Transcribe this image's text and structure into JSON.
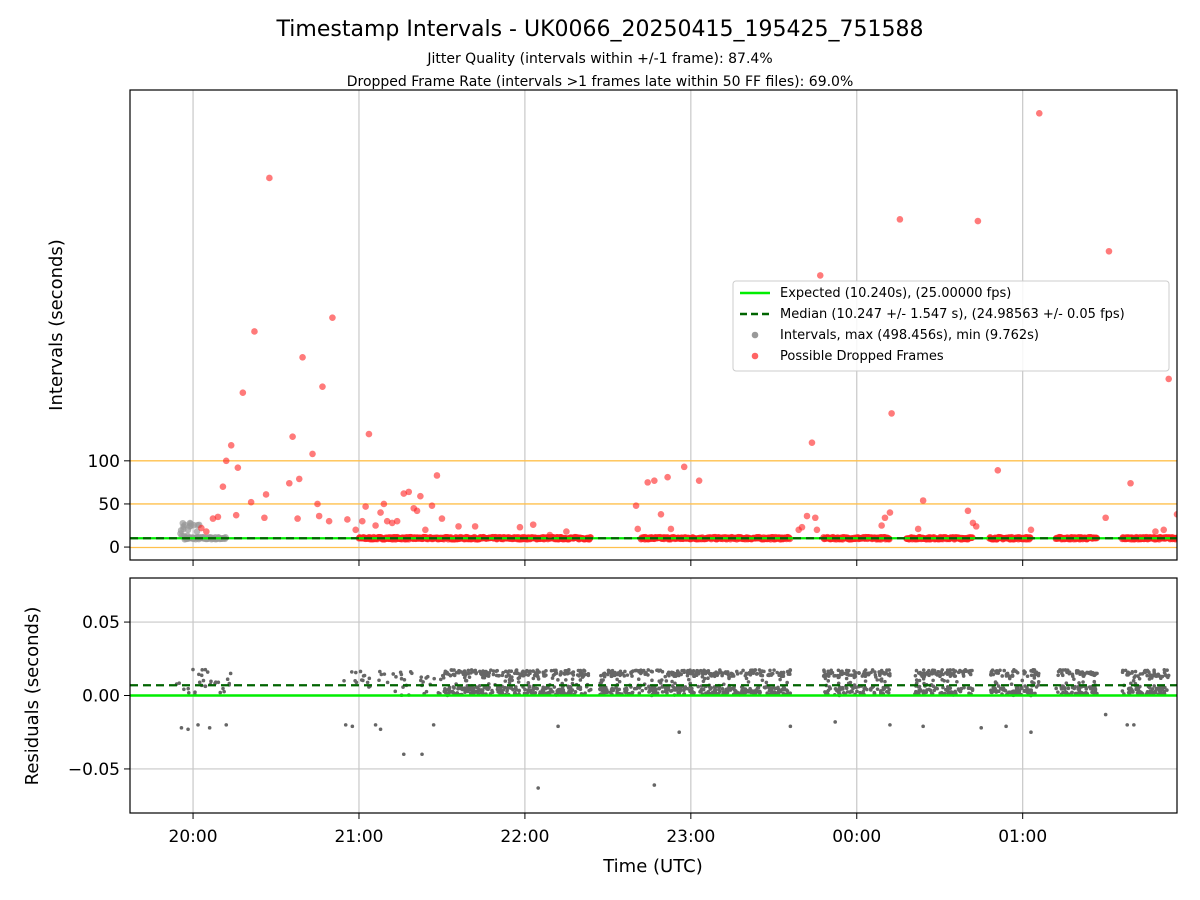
{
  "title": "Timestamp Intervals - UK0066_20250415_195425_751588",
  "subtitle_1": "Jitter Quality (intervals within +/-1 frame): 87.4%",
  "subtitle_2": "Dropped Frame Rate (intervals >1 frames late within 50 FF files): 69.0%",
  "colors": {
    "expected": "#00ee00",
    "median": "#006400",
    "intervals": "#999999",
    "dropped": "#ff2222",
    "threshold": "#ffc04d",
    "residual": "#666666",
    "grid": "#c8c8c8"
  },
  "chart_data": [
    {
      "type": "scatter",
      "panel": "top",
      "ylabel": "Intervals (seconds)",
      "y_ticks": [
        "0",
        "50",
        "100"
      ],
      "y_tick_values": [
        0,
        50,
        100
      ],
      "ylim": [
        -15,
        530
      ],
      "x_ticks": [
        "20:00",
        "21:00",
        "22:00",
        "23:00",
        "00:00",
        "01:00"
      ],
      "x_tick_hours": [
        20,
        21,
        22,
        23,
        24,
        25
      ],
      "xlim_hours": [
        19.62,
        25.93
      ],
      "grid": "vertical",
      "threshold_lines": [
        -0.5,
        50,
        100
      ],
      "expected_value": 10.24,
      "median_value": 10.247,
      "legend_position": "center-right",
      "legend": [
        {
          "label": "Expected (10.240s), (25.00000 fps)",
          "style": "solid-line"
        },
        {
          "label": "Median (10.247 +/- 1.547 s), (24.98563 +/- 0.05 fps)",
          "style": "dashed-line"
        },
        {
          "label": "Intervals, max (498.456s), min (9.762s)",
          "style": "grey-dot"
        },
        {
          "label": "Possible Dropped Frames",
          "style": "red-dot"
        }
      ],
      "dense_baseline_segments": [
        [
          19.95,
          20.2
        ],
        [
          21.0,
          21.5
        ],
        [
          21.5,
          22.4
        ],
        [
          22.7,
          23.6
        ],
        [
          23.8,
          24.2
        ],
        [
          24.3,
          24.7
        ],
        [
          24.8,
          25.05
        ],
        [
          25.2,
          25.45
        ],
        [
          25.6,
          25.93
        ]
      ],
      "dropped_frames": [
        {
          "x": 20.05,
          "y": 22
        },
        {
          "x": 20.08,
          "y": 18
        },
        {
          "x": 20.12,
          "y": 33
        },
        {
          "x": 20.15,
          "y": 35
        },
        {
          "x": 20.18,
          "y": 70
        },
        {
          "x": 20.2,
          "y": 100
        },
        {
          "x": 20.23,
          "y": 118
        },
        {
          "x": 20.26,
          "y": 37
        },
        {
          "x": 20.27,
          "y": 92
        },
        {
          "x": 20.3,
          "y": 179
        },
        {
          "x": 20.35,
          "y": 52
        },
        {
          "x": 20.37,
          "y": 250
        },
        {
          "x": 20.43,
          "y": 34
        },
        {
          "x": 20.44,
          "y": 61
        },
        {
          "x": 20.46,
          "y": 428
        },
        {
          "x": 20.58,
          "y": 74
        },
        {
          "x": 20.6,
          "y": 128
        },
        {
          "x": 20.63,
          "y": 33
        },
        {
          "x": 20.64,
          "y": 79
        },
        {
          "x": 20.66,
          "y": 220
        },
        {
          "x": 20.72,
          "y": 108
        },
        {
          "x": 20.75,
          "y": 50
        },
        {
          "x": 20.76,
          "y": 36
        },
        {
          "x": 20.78,
          "y": 186
        },
        {
          "x": 20.82,
          "y": 30
        },
        {
          "x": 20.84,
          "y": 266
        },
        {
          "x": 20.93,
          "y": 32
        },
        {
          "x": 20.98,
          "y": 20
        },
        {
          "x": 21.02,
          "y": 30
        },
        {
          "x": 21.04,
          "y": 47
        },
        {
          "x": 21.06,
          "y": 131
        },
        {
          "x": 21.1,
          "y": 25
        },
        {
          "x": 21.13,
          "y": 40
        },
        {
          "x": 21.15,
          "y": 50
        },
        {
          "x": 21.17,
          "y": 30
        },
        {
          "x": 21.2,
          "y": 28
        },
        {
          "x": 21.23,
          "y": 30
        },
        {
          "x": 21.27,
          "y": 62
        },
        {
          "x": 21.3,
          "y": 64
        },
        {
          "x": 21.33,
          "y": 45
        },
        {
          "x": 21.35,
          "y": 42
        },
        {
          "x": 21.37,
          "y": 59
        },
        {
          "x": 21.4,
          "y": 20
        },
        {
          "x": 21.44,
          "y": 48
        },
        {
          "x": 21.47,
          "y": 83
        },
        {
          "x": 21.5,
          "y": 33
        },
        {
          "x": 21.6,
          "y": 24
        },
        {
          "x": 21.7,
          "y": 24
        },
        {
          "x": 21.97,
          "y": 23
        },
        {
          "x": 22.05,
          "y": 26
        },
        {
          "x": 22.15,
          "y": 14
        },
        {
          "x": 22.25,
          "y": 18
        },
        {
          "x": 22.67,
          "y": 48
        },
        {
          "x": 22.68,
          "y": 21
        },
        {
          "x": 22.74,
          "y": 75
        },
        {
          "x": 22.78,
          "y": 77
        },
        {
          "x": 22.82,
          "y": 38
        },
        {
          "x": 22.86,
          "y": 81
        },
        {
          "x": 22.88,
          "y": 21
        },
        {
          "x": 22.96,
          "y": 93
        },
        {
          "x": 23.05,
          "y": 77
        },
        {
          "x": 23.65,
          "y": 20
        },
        {
          "x": 23.67,
          "y": 23
        },
        {
          "x": 23.7,
          "y": 36
        },
        {
          "x": 23.73,
          "y": 121
        },
        {
          "x": 23.75,
          "y": 34
        },
        {
          "x": 23.76,
          "y": 20
        },
        {
          "x": 23.78,
          "y": 315
        },
        {
          "x": 24.15,
          "y": 25
        },
        {
          "x": 24.17,
          "y": 34
        },
        {
          "x": 24.2,
          "y": 40
        },
        {
          "x": 24.21,
          "y": 155
        },
        {
          "x": 24.26,
          "y": 380
        },
        {
          "x": 24.37,
          "y": 21
        },
        {
          "x": 24.4,
          "y": 54
        },
        {
          "x": 24.67,
          "y": 42
        },
        {
          "x": 24.7,
          "y": 28
        },
        {
          "x": 24.72,
          "y": 24
        },
        {
          "x": 24.73,
          "y": 378
        },
        {
          "x": 24.85,
          "y": 89
        },
        {
          "x": 25.05,
          "y": 20
        },
        {
          "x": 25.1,
          "y": 503
        },
        {
          "x": 25.5,
          "y": 34
        },
        {
          "x": 25.52,
          "y": 343
        },
        {
          "x": 25.65,
          "y": 74
        },
        {
          "x": 25.8,
          "y": 18
        },
        {
          "x": 25.85,
          "y": 20
        },
        {
          "x": 25.88,
          "y": 195
        },
        {
          "x": 25.93,
          "y": 38
        }
      ]
    },
    {
      "type": "scatter",
      "panel": "bottom",
      "xlabel": "Time (UTC)",
      "ylabel": "Residuals (seconds)",
      "y_ticks": [
        "0.05",
        "0.00",
        "−0.05"
      ],
      "y_tick_values": [
        0.05,
        0.0,
        -0.05
      ],
      "ylim": [
        -0.08,
        0.08
      ],
      "x_ticks": [
        "20:00",
        "21:00",
        "22:00",
        "23:00",
        "00:00",
        "01:00"
      ],
      "x_tick_hours": [
        20,
        21,
        22,
        23,
        24,
        25
      ],
      "xlim_hours": [
        19.62,
        25.93
      ],
      "grid": "both",
      "expected_value": 0.0,
      "median_value": 0.007,
      "dense_residual_segments": [
        [
          21.5,
          22.4
        ],
        [
          22.45,
          23.6
        ],
        [
          23.8,
          24.2
        ],
        [
          24.35,
          24.7
        ],
        [
          24.8,
          25.1
        ],
        [
          25.2,
          25.45
        ],
        [
          25.6,
          25.88
        ]
      ],
      "outliers": [
        {
          "x": 19.93,
          "y": -0.022
        },
        {
          "x": 19.97,
          "y": -0.023
        },
        {
          "x": 20.03,
          "y": -0.02
        },
        {
          "x": 20.1,
          "y": -0.022
        },
        {
          "x": 20.2,
          "y": -0.02
        },
        {
          "x": 20.92,
          "y": -0.02
        },
        {
          "x": 20.96,
          "y": -0.021
        },
        {
          "x": 21.1,
          "y": -0.02
        },
        {
          "x": 21.13,
          "y": -0.023
        },
        {
          "x": 21.27,
          "y": -0.04
        },
        {
          "x": 21.38,
          "y": -0.04
        },
        {
          "x": 21.45,
          "y": -0.02
        },
        {
          "x": 22.08,
          "y": -0.063
        },
        {
          "x": 22.2,
          "y": -0.021
        },
        {
          "x": 22.78,
          "y": -0.061
        },
        {
          "x": 22.93,
          "y": -0.025
        },
        {
          "x": 23.6,
          "y": -0.021
        },
        {
          "x": 23.87,
          "y": -0.018
        },
        {
          "x": 24.2,
          "y": -0.02
        },
        {
          "x": 24.4,
          "y": -0.021
        },
        {
          "x": 24.75,
          "y": -0.022
        },
        {
          "x": 24.9,
          "y": -0.021
        },
        {
          "x": 25.05,
          "y": -0.025
        },
        {
          "x": 25.5,
          "y": -0.013
        },
        {
          "x": 25.63,
          "y": -0.02
        },
        {
          "x": 25.67,
          "y": -0.02
        }
      ]
    }
  ]
}
